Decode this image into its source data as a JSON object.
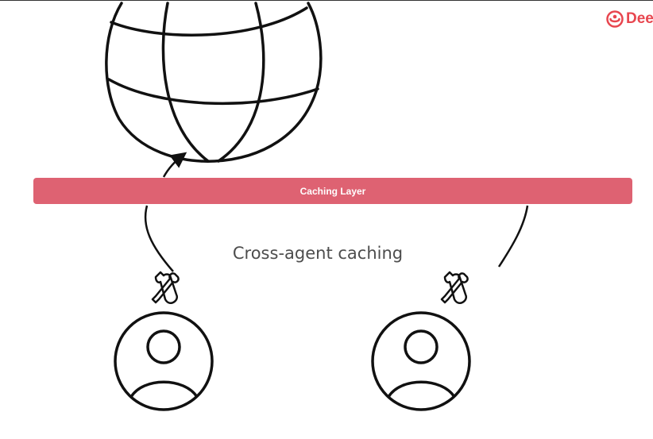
{
  "brand": {
    "text": "Dee",
    "color": "#e8464f"
  },
  "diagram": {
    "cache_layer_label": "Caching Layer",
    "cache_layer_color": "#de6272",
    "caption": "Cross-agent caching",
    "stroke_color": "#111111",
    "agents": [
      {
        "id": "agent-left",
        "tool_icon": "tools-icon",
        "avatar_icon": "user-avatar-icon"
      },
      {
        "id": "agent-right",
        "tool_icon": "tools-icon",
        "avatar_icon": "user-avatar-icon"
      }
    ],
    "globe_icon": "globe-icon"
  }
}
